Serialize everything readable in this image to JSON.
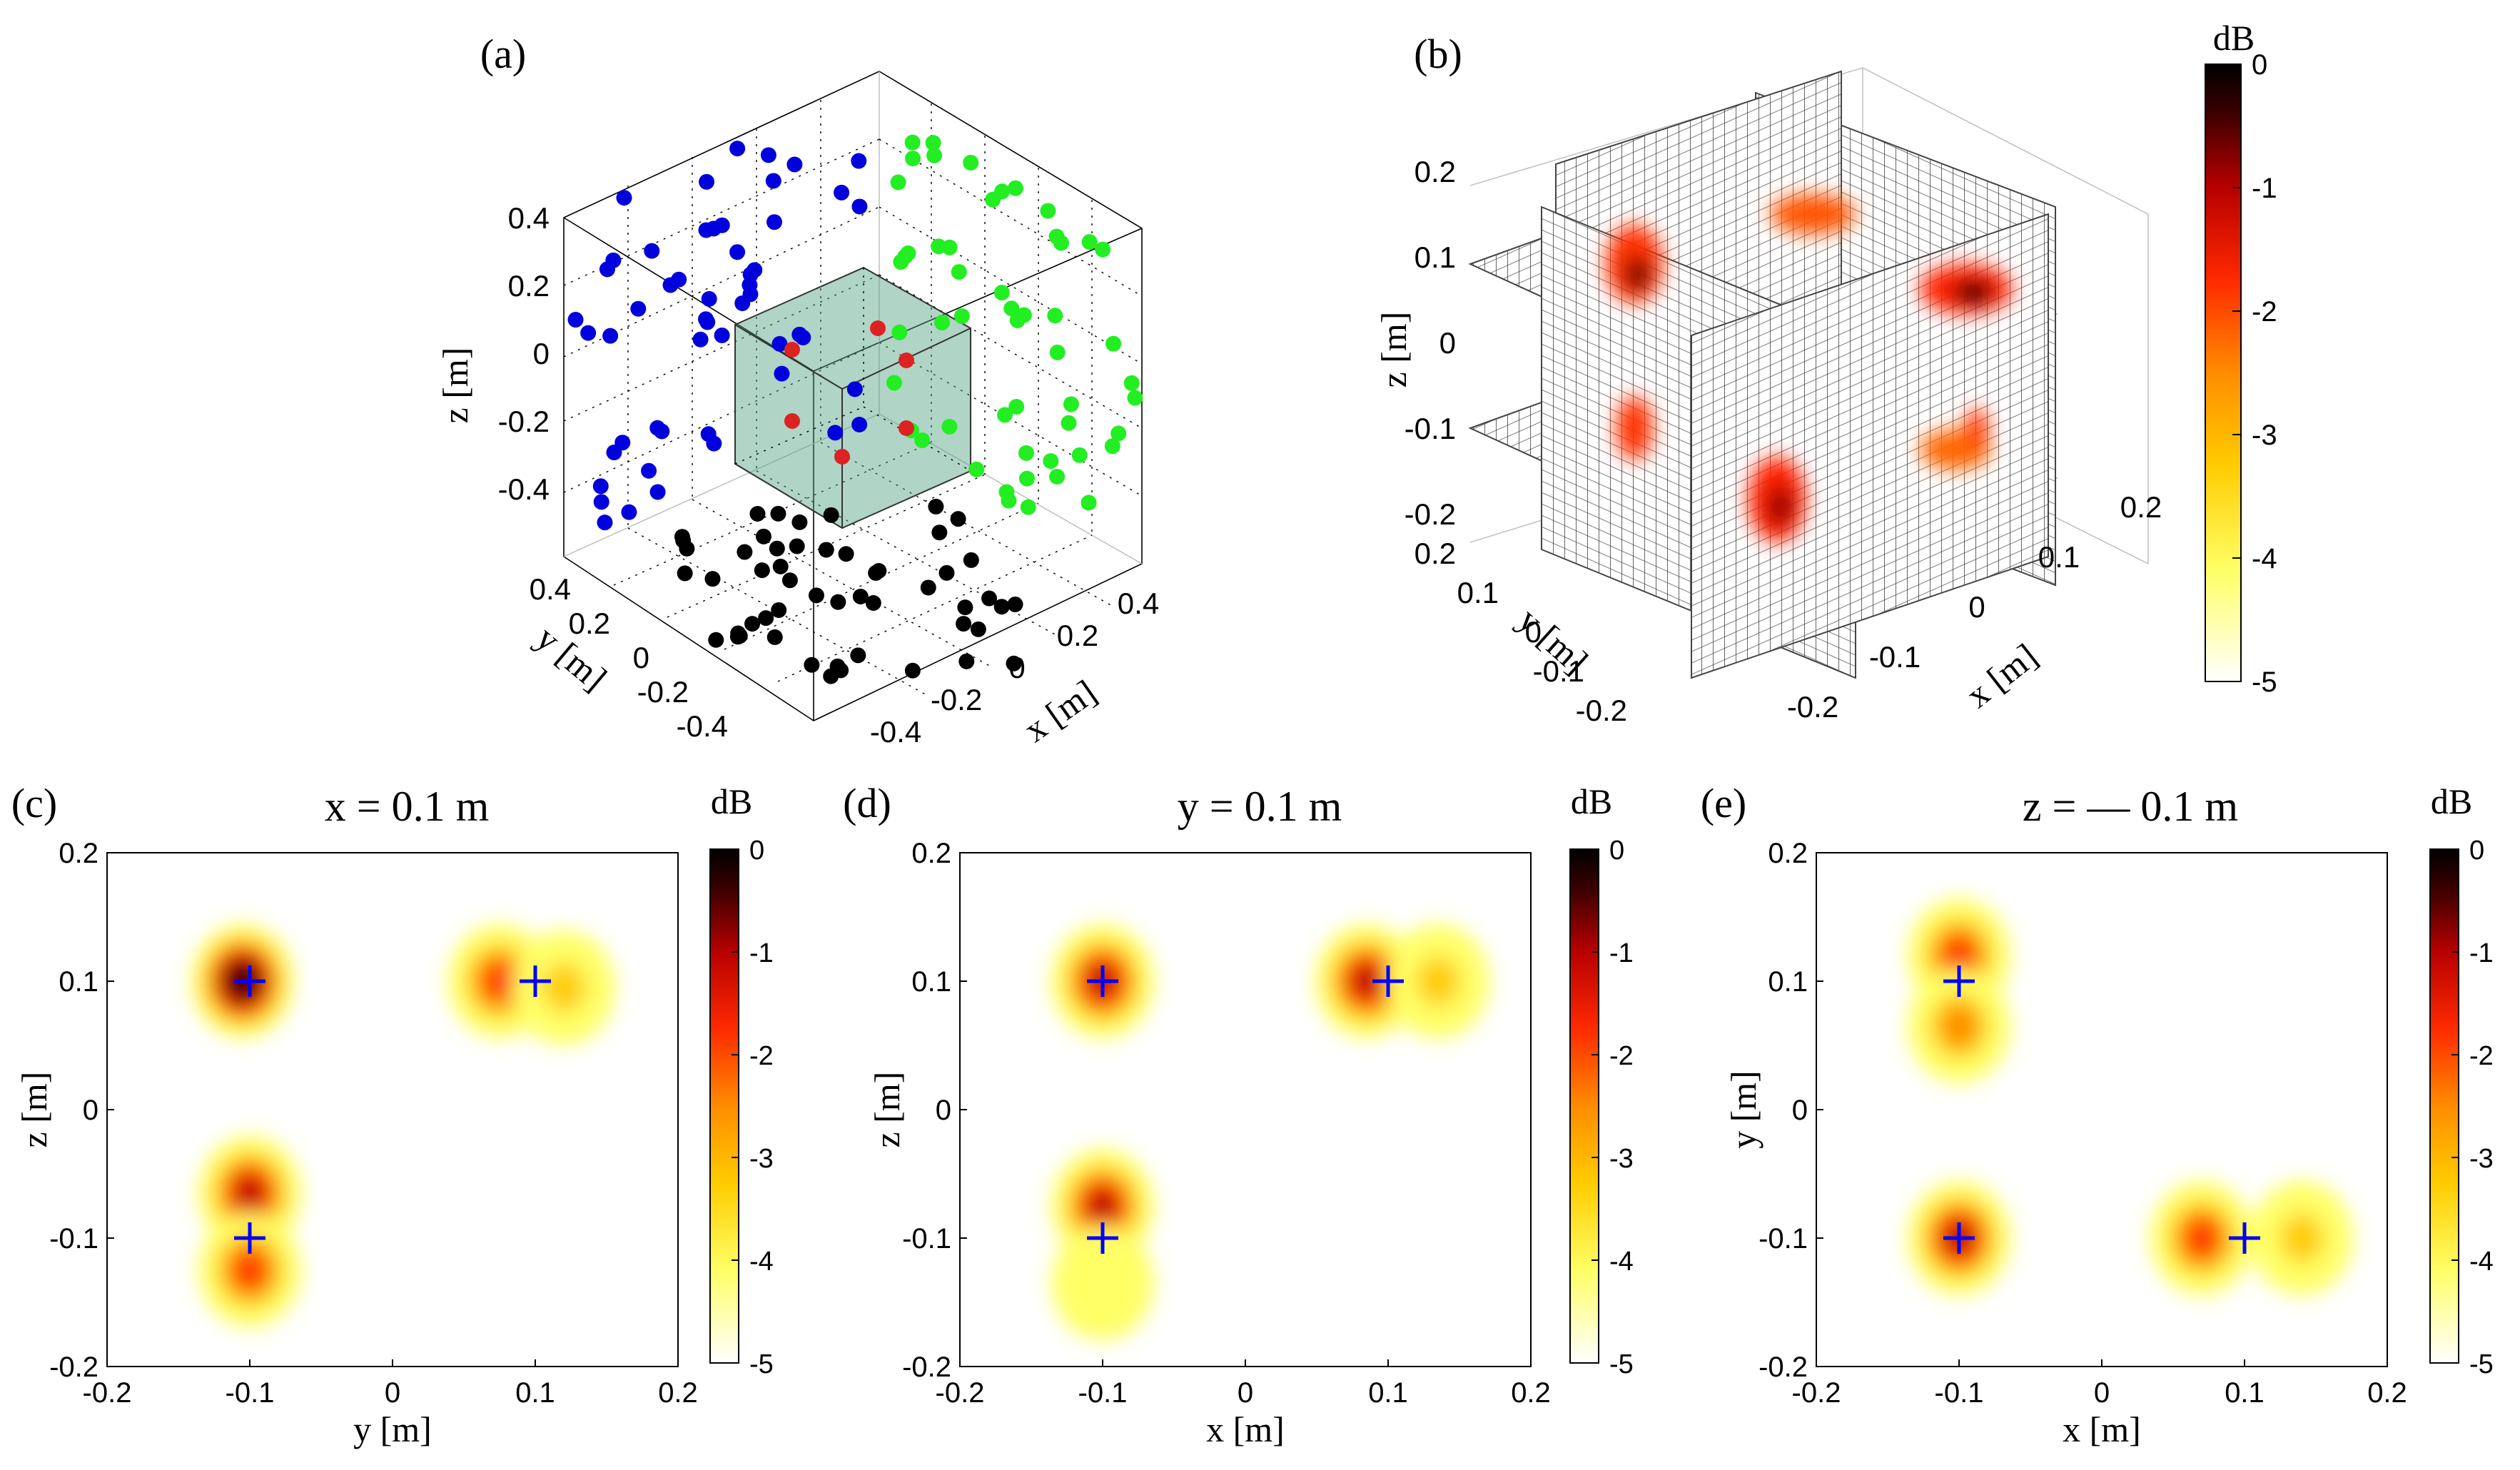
{
  "figure": {
    "panel_labels": [
      "(a)",
      "(b)",
      "(c)",
      "(d)",
      "(e)"
    ],
    "colormap": [
      "#ffffff",
      "#ffff66",
      "#ffcc00",
      "#ff8c00",
      "#ff2a00",
      "#b80000",
      "#3d0000",
      "#000000"
    ],
    "source_marker_color": "#0000ff"
  },
  "panel_a": {
    "label": "(a)",
    "xlabel": "x [m]",
    "ylabel": "y [m]",
    "zlabel": "z [m]",
    "z_ticks": [
      "0.4",
      "0.2",
      "0",
      "-0.2",
      "-0.4"
    ],
    "y_ticks": [
      "0.4",
      "0.2",
      "0",
      "-0.2",
      "-0.4"
    ],
    "x_ticks": [
      "-0.4",
      "-0.2",
      "0",
      "0.2",
      "0.4"
    ],
    "groups": [
      {
        "color": "#0000dd",
        "side": "y-plane"
      },
      {
        "color": "#22ee22",
        "side": "x-plane"
      },
      {
        "color": "#000000",
        "side": "bottom"
      },
      {
        "color": "#dd2222",
        "side": "inner-cube"
      }
    ],
    "cube_fill": "#4f9f7f"
  },
  "panel_b": {
    "label": "(b)",
    "xlabel": "x [m]",
    "ylabel": "y [m]",
    "zlabel": "z [m]",
    "z_ticks": [
      "0.2",
      "0.1",
      "0",
      "-0.1",
      "-0.2"
    ],
    "y_ticks": [
      "0.2",
      "0.1",
      "0",
      "-0.1",
      "-0.2"
    ],
    "x_ticks": [
      "-0.2",
      "-0.1",
      "0",
      "0.1",
      "0.2"
    ],
    "colorbar": {
      "title": "dB",
      "ticks": [
        "0",
        "-1",
        "-2",
        "-3",
        "-4",
        "-5"
      ]
    }
  },
  "chart_data": [
    {
      "type": "heatmap",
      "panel": "(c)",
      "title": "x = 0.1 m",
      "xlabel": "y [m]",
      "ylabel": "z [m]",
      "xlim": [
        -0.2,
        0.2
      ],
      "ylim": [
        -0.2,
        0.2
      ],
      "x_ticks": [
        "-0.2",
        "-0.1",
        "0",
        "0.1",
        "0.2"
      ],
      "y_ticks": [
        "0.2",
        "0.1",
        "0",
        "-0.1",
        "-0.2"
      ],
      "colorbar": {
        "title": "dB",
        "min": -5,
        "max": 0,
        "ticks": [
          "0",
          "-1",
          "-2",
          "-3",
          "-4",
          "-5"
        ]
      },
      "sources": [
        [
          -0.1,
          0.1
        ],
        [
          0.1,
          0.1
        ],
        [
          -0.1,
          -0.1
        ]
      ],
      "blobs": [
        {
          "x": -0.105,
          "y": 0.1,
          "peak": 0.0
        },
        {
          "x": 0.075,
          "y": 0.1,
          "peak": -1.8
        },
        {
          "x": 0.12,
          "y": 0.095,
          "peak": -3.0
        },
        {
          "x": -0.1,
          "y": -0.065,
          "peak": -1.6
        },
        {
          "x": -0.1,
          "y": -0.125,
          "peak": -2.0
        }
      ]
    },
    {
      "type": "heatmap",
      "panel": "(d)",
      "title": "y = 0.1 m",
      "xlabel": "x [m]",
      "ylabel": "z [m]",
      "xlim": [
        -0.2,
        0.2
      ],
      "ylim": [
        -0.2,
        0.2
      ],
      "x_ticks": [
        "-0.2",
        "-0.1",
        "0",
        "0.1",
        "0.2"
      ],
      "y_ticks": [
        "0.2",
        "0.1",
        "0",
        "-0.1",
        "-0.2"
      ],
      "colorbar": {
        "title": "dB",
        "min": -5,
        "max": 0,
        "ticks": [
          "0",
          "-1",
          "-2",
          "-3",
          "-4",
          "-5"
        ]
      },
      "sources": [
        [
          -0.1,
          0.1
        ],
        [
          0.1,
          0.1
        ],
        [
          -0.1,
          -0.1
        ]
      ],
      "blobs": [
        {
          "x": -0.1,
          "y": 0.1,
          "peak": -1.2
        },
        {
          "x": 0.085,
          "y": 0.1,
          "peak": -1.5
        },
        {
          "x": 0.135,
          "y": 0.1,
          "peak": -3.2
        },
        {
          "x": -0.1,
          "y": -0.075,
          "peak": -1.4
        },
        {
          "x": -0.1,
          "y": -0.135,
          "peak": -3.8
        }
      ]
    },
    {
      "type": "heatmap",
      "panel": "(e)",
      "title": "z = — 0.1 m",
      "xlabel": "x [m]",
      "ylabel": "y [m]",
      "xlim": [
        -0.2,
        0.2
      ],
      "ylim": [
        -0.2,
        0.2
      ],
      "x_ticks": [
        "-0.2",
        "-0.1",
        "0",
        "0.1",
        "0.2"
      ],
      "y_ticks": [
        "0.2",
        "0.1",
        "0",
        "-0.1",
        "-0.2"
      ],
      "colorbar": {
        "title": "dB",
        "min": -5,
        "max": 0,
        "ticks": [
          "0",
          "-1",
          "-2",
          "-3",
          "-4",
          "-5"
        ]
      },
      "sources": [
        [
          -0.1,
          0.1
        ],
        [
          -0.1,
          -0.1
        ],
        [
          0.1,
          -0.1
        ]
      ],
      "blobs": [
        {
          "x": -0.1,
          "y": 0.12,
          "peak": -2.0
        },
        {
          "x": -0.1,
          "y": 0.065,
          "peak": -2.8
        },
        {
          "x": -0.1,
          "y": -0.1,
          "peak": -1.5
        },
        {
          "x": 0.07,
          "y": -0.1,
          "peak": -2.0
        },
        {
          "x": 0.14,
          "y": -0.1,
          "peak": -3.0
        }
      ]
    }
  ]
}
